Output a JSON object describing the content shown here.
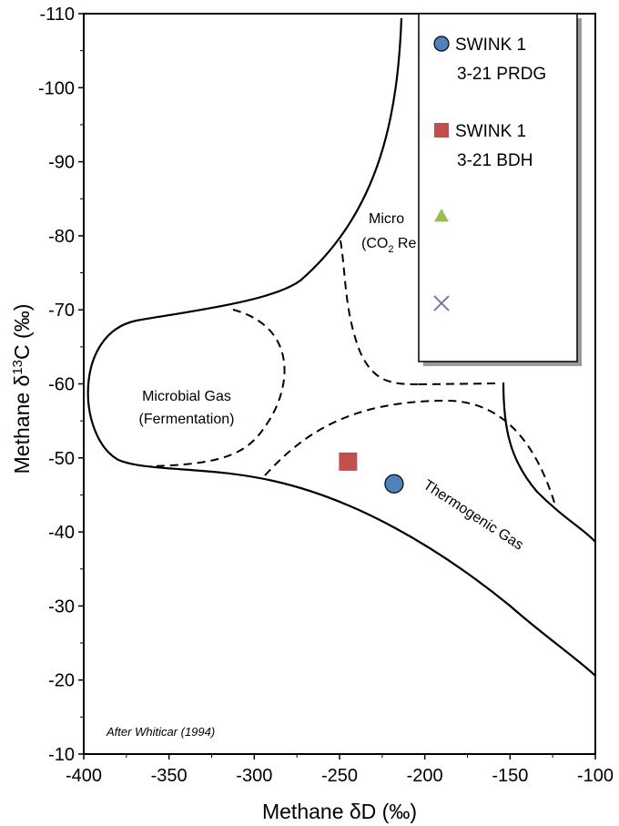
{
  "chart_data": {
    "type": "scatter",
    "xlabel": "Methane δD (‰)",
    "ylabel": "Methane δ13C (‰)",
    "xlim": [
      -400,
      -100
    ],
    "ylim": [
      -10,
      -110
    ],
    "xticks": [
      -400,
      -350,
      -300,
      -250,
      -200,
      -150,
      -100
    ],
    "yticks": [
      -10,
      -20,
      -30,
      -40,
      -50,
      -60,
      -70,
      -80,
      -90,
      -100,
      -110
    ],
    "grid": false,
    "legend_position": "top-right",
    "series": [
      {
        "name": "SWINK 1 3-21 PRDG",
        "label_lines": [
          "SWINK 1",
          "3-21 PRDG"
        ],
        "marker": "circle",
        "color": "#4F81BD",
        "points": [
          {
            "x": -218,
            "y": -46.5
          }
        ]
      },
      {
        "name": "SWINK 1 3-21 BDH",
        "label_lines": [
          "SWINK 1",
          "3-21 BDH"
        ],
        "marker": "square",
        "color": "#C0504D",
        "points": [
          {
            "x": -245,
            "y": -49.5
          }
        ]
      },
      {
        "name": "",
        "label_lines": [],
        "marker": "triangle",
        "color": "#9BBB59",
        "points": []
      },
      {
        "name": "",
        "label_lines": [],
        "marker": "x",
        "color": "#8064A2",
        "points": []
      }
    ],
    "annotations": {
      "microbial_fermentation": [
        "Microbial Gas",
        "(Fermentation)"
      ],
      "microbial_co2_line1": "Micro",
      "microbial_co2_line2_prefix": "(CO",
      "microbial_co2_line2_sub": "2",
      "microbial_co2_line2_suffix": " Re",
      "thermogenic": "Thermogenic Gas",
      "credit": "After Whiticar (1994)"
    }
  }
}
